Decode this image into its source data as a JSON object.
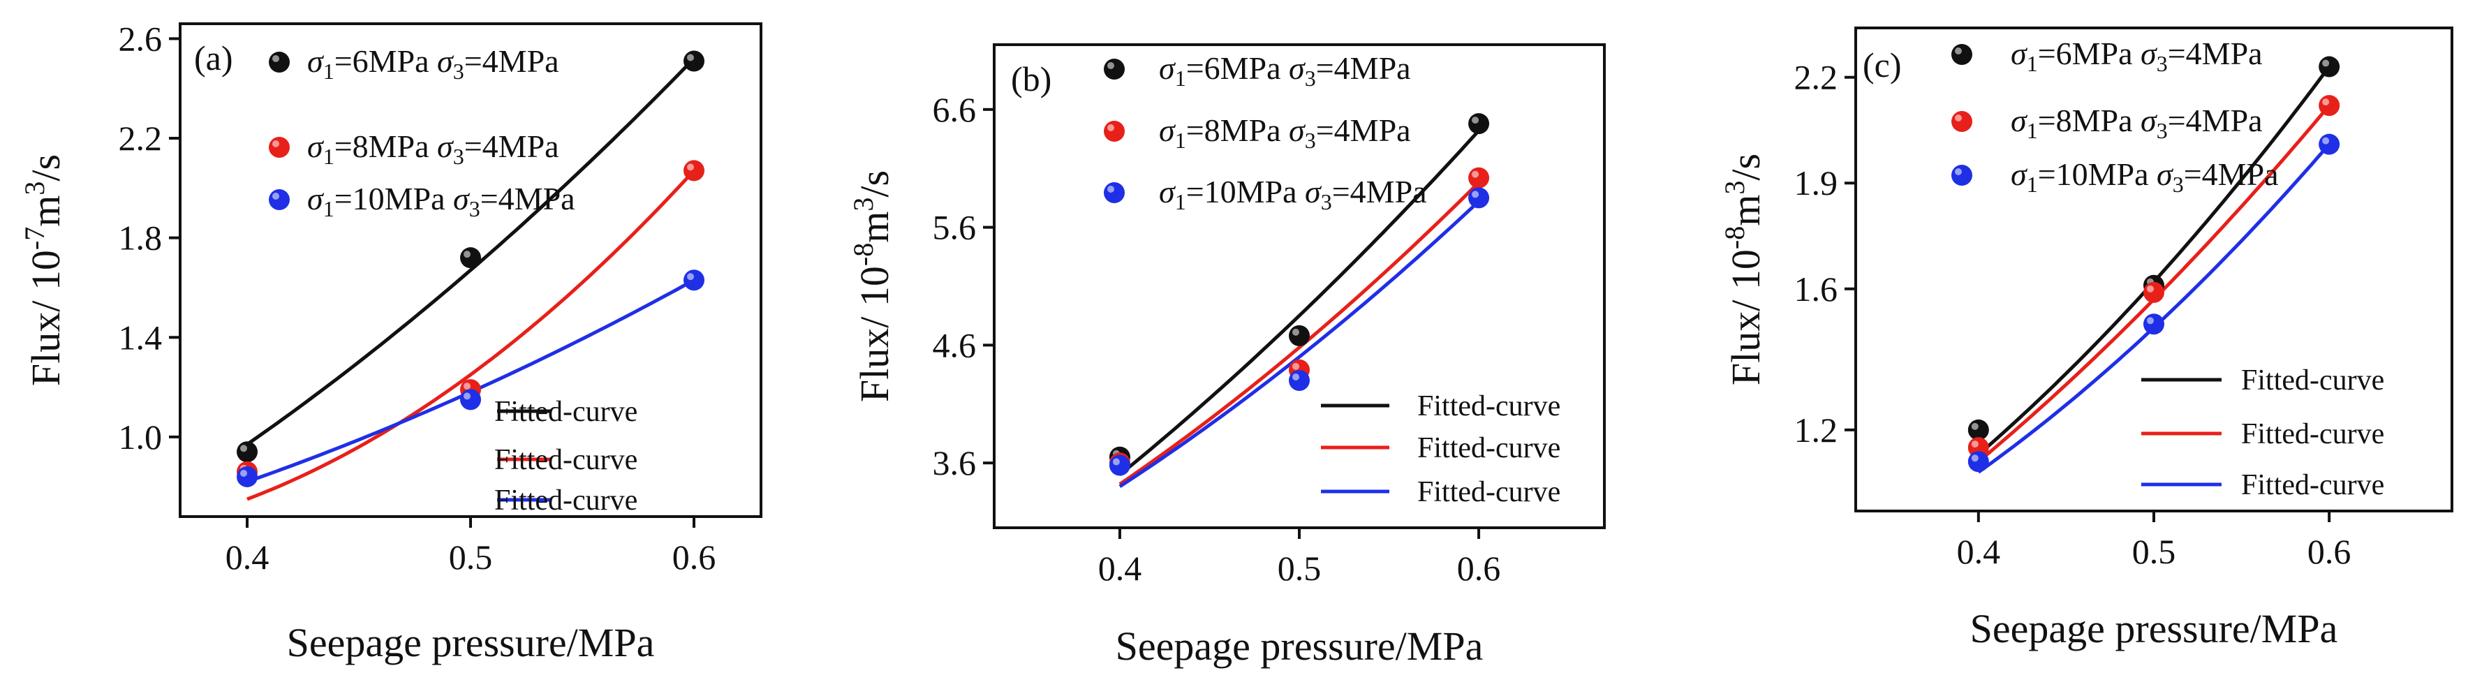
{
  "colors": {
    "black": "#111111",
    "red": "#e8201a",
    "blue": "#1f2fe6"
  },
  "legend_symbols": {
    "sigma": "σ",
    "sub1": "1",
    "sub3": "3"
  },
  "chart_data": [
    {
      "type": "scatter",
      "panel": "(a)",
      "xlabel": "Seepage pressure/MPa",
      "ylabel": {
        "prefix": "Flux/ 10",
        "exp": "-7",
        "unit_mid": "m",
        "unit_exp": "3",
        "unit_end": "/s"
      },
      "xlim": [
        0.37,
        0.63
      ],
      "ylim": [
        0.68,
        2.66
      ],
      "xticks": [
        "0.4",
        "0.5",
        "0.6"
      ],
      "xtick_values": [
        0.4,
        0.5,
        0.6
      ],
      "yticks": [
        "1.0",
        "1.4",
        "1.8",
        "2.2",
        "2.6"
      ],
      "ytick_values": [
        1.0,
        1.4,
        1.8,
        2.2,
        2.6
      ],
      "x": [
        0.4,
        0.5,
        0.6
      ],
      "series": [
        {
          "name": "σ1=6MPa σ3=4MPa",
          "s1": "=6MPa ",
          "s3": "=4MPa",
          "color": "black",
          "values": [
            0.94,
            1.72,
            2.51
          ],
          "fit": [
            0.97,
            1.67,
            2.52
          ]
        },
        {
          "name": "σ1=8MPa σ3=4MPa",
          "s1": "=8MPa ",
          "s3": "=4MPa",
          "color": "red",
          "values": [
            0.86,
            1.19,
            2.07
          ],
          "fit": [
            0.75,
            1.25,
            2.07
          ]
        },
        {
          "name": "σ1=10MPa σ3=4MPa",
          "s1": "=10MPa ",
          "s3": "=4MPa",
          "color": "blue",
          "values": [
            0.84,
            1.15,
            1.63
          ],
          "fit": [
            0.82,
            1.18,
            1.63
          ]
        }
      ],
      "fit_legend": [
        "Fitted-curve",
        "Fitted-curve",
        "Fitted-curve"
      ]
    },
    {
      "type": "scatter",
      "panel": "(b)",
      "xlabel": "Seepage pressure/MPa",
      "ylabel": {
        "prefix": "Flux/ 10",
        "exp": "-8",
        "unit_mid": "m",
        "unit_exp": "3",
        "unit_end": "/s"
      },
      "xlim": [
        0.33,
        0.67
      ],
      "ylim": [
        3.05,
        7.15
      ],
      "xticks": [
        "0.4",
        "0.5",
        "0.6"
      ],
      "xtick_values": [
        0.4,
        0.5,
        0.6
      ],
      "yticks": [
        "3.6",
        "4.6",
        "5.6",
        "6.6"
      ],
      "ytick_values": [
        3.6,
        4.6,
        5.6,
        6.6
      ],
      "x": [
        0.4,
        0.5,
        0.6
      ],
      "series": [
        {
          "name": "σ1=6MPa σ3=4MPa",
          "s1": "=6MPa ",
          "s3": "=4MPa",
          "color": "black",
          "values": [
            3.65,
            4.68,
            6.48
          ],
          "fit": [
            3.5,
            4.85,
            6.42
          ]
        },
        {
          "name": "σ1=8MPa σ3=4MPa",
          "s1": "=8MPa ",
          "s3": "=4MPa",
          "color": "red",
          "values": [
            3.6,
            4.39,
            6.02
          ],
          "fit": [
            3.42,
            4.58,
            5.98
          ]
        },
        {
          "name": "σ1=10MPa σ3=4MPa",
          "s1": "=10MPa ",
          "s3": "=4MPa",
          "color": "blue",
          "values": [
            3.58,
            4.3,
            5.85
          ],
          "fit": [
            3.4,
            4.5,
            5.82
          ]
        }
      ],
      "fit_legend": [
        "Fitted-curve",
        "Fitted-curve",
        "Fitted-curve"
      ]
    },
    {
      "type": "scatter",
      "panel": "(c)",
      "xlabel": "Seepage pressure/MPa",
      "ylabel": {
        "prefix": "Flux/ 10",
        "exp": "-8",
        "unit_mid": "m",
        "unit_exp": "3",
        "unit_end": "/s"
      },
      "xlim": [
        0.33,
        0.67
      ],
      "ylim": [
        0.97,
        2.34
      ],
      "xticks": [
        "0.4",
        "0.5",
        "0.6"
      ],
      "xtick_values": [
        0.4,
        0.5,
        0.6
      ],
      "yticks": [
        "1.2",
        "1.6",
        "1.9",
        "2.2"
      ],
      "ytick_values": [
        1.2,
        1.6,
        1.9,
        2.2
      ],
      "x": [
        0.4,
        0.5,
        0.6
      ],
      "series": [
        {
          "name": "σ1=6MPa σ3=4MPa",
          "s1": "=6MPa ",
          "s3": "=4MPa",
          "color": "black",
          "values": [
            1.2,
            1.61,
            2.23
          ],
          "fit": [
            1.13,
            1.62,
            2.23
          ]
        },
        {
          "name": "σ1=8MPa σ3=4MPa",
          "s1": "=8MPa ",
          "s3": "=4MPa",
          "color": "red",
          "values": [
            1.15,
            1.59,
            2.12
          ],
          "fit": [
            1.11,
            1.57,
            2.12
          ]
        },
        {
          "name": "σ1=10MPa σ3=4MPa",
          "s1": "=10MPa ",
          "s3": "=4MPa",
          "color": "blue",
          "values": [
            1.11,
            1.5,
            2.01
          ],
          "fit": [
            1.08,
            1.49,
            2.01
          ]
        }
      ],
      "fit_legend": [
        "Fitted-curve",
        "Fitted-curve",
        "Fitted-curve"
      ]
    }
  ]
}
